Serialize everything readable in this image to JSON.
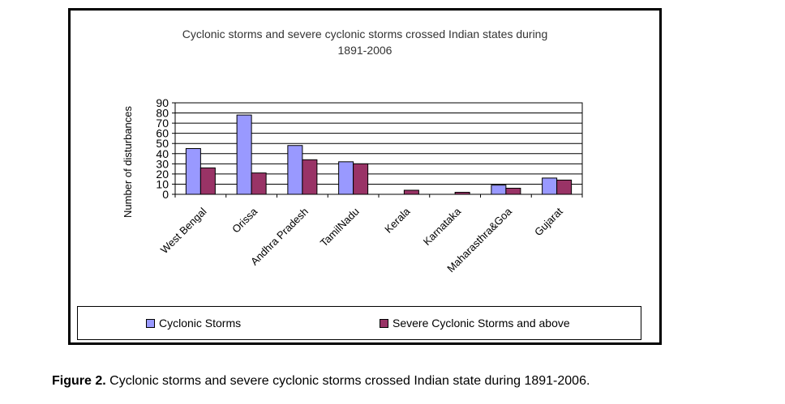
{
  "chart_data": {
    "type": "bar",
    "title": "Cyclonic storms and severe cyclonic storms crossed Indian states during 1891-2006",
    "title_lines": [
      "Cyclonic storms and severe cyclonic storms crossed Indian states during",
      "1891-2006"
    ],
    "xlabel": "",
    "ylabel": "Number of disturbances",
    "ylim": [
      0,
      90
    ],
    "yticks": [
      0,
      10,
      20,
      30,
      40,
      50,
      60,
      70,
      80,
      90
    ],
    "grid": true,
    "legend_position": "bottom",
    "categories": [
      "West Bengal",
      "Orissa",
      "Andhra Pradesh",
      "TamilNadu",
      "Kerala",
      "Karnataka",
      "Maharasthra&Goa",
      "Gujarat"
    ],
    "series": [
      {
        "name": "Cyclonic Storms",
        "color": "#9999ff",
        "values": [
          45,
          78,
          48,
          32,
          0,
          0,
          9,
          16
        ]
      },
      {
        "name": "Severe Cyclonic Storms and above",
        "color": "#993366",
        "values": [
          26,
          21,
          34,
          30,
          4,
          2,
          6,
          14
        ]
      }
    ]
  },
  "caption": {
    "label": "Figure 2.",
    "text": " Cyclonic storms and severe cyclonic storms crossed Indian state during 1891-2006."
  }
}
